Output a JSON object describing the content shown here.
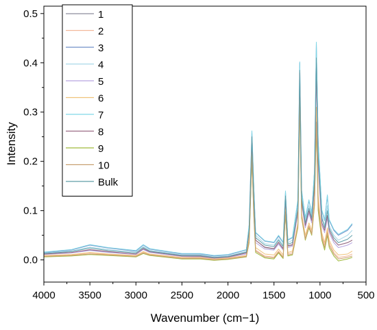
{
  "chart_data": {
    "type": "line",
    "title": "",
    "xlabel": "Wavenumber (cm−1)",
    "ylabel": "Intensity",
    "xlim": [
      4000,
      500
    ],
    "ylim": [
      -0.045,
      0.515
    ],
    "x_reversed": true,
    "x_ticks": [
      4000,
      3500,
      3000,
      2500,
      2000,
      1500,
      1000,
      500
    ],
    "y_ticks": [
      0.0,
      0.1,
      0.2,
      0.3,
      0.4,
      0.5
    ],
    "x_tick_labels": [
      "4000",
      "3500",
      "3000",
      "2500",
      "2000",
      "1500",
      "1000",
      "500"
    ],
    "y_tick_labels": [
      "0.0",
      "0.1",
      "0.2",
      "0.3",
      "0.4",
      "0.5"
    ],
    "legend_position": "top-left",
    "grid": false,
    "series": [
      {
        "name": "1",
        "color": "#8c8c9c",
        "x": [
          4000,
          3700,
          3500,
          3300,
          3000,
          2920,
          2850,
          2500,
          2300,
          2150,
          2000,
          1800,
          1770,
          1740,
          1720,
          1700,
          1600,
          1500,
          1450,
          1400,
          1375,
          1350,
          1300,
          1240,
          1220,
          1200,
          1160,
          1120,
          1090,
          1060,
          1040,
          1020,
          980,
          950,
          920,
          900,
          850,
          800,
          700,
          650
        ],
        "y": [
          0.012,
          0.015,
          0.02,
          0.016,
          0.012,
          0.022,
          0.016,
          0.008,
          0.007,
          0.004,
          0.006,
          0.014,
          0.06,
          0.245,
          0.13,
          0.04,
          0.025,
          0.022,
          0.035,
          0.022,
          0.125,
          0.028,
          0.03,
          0.1,
          0.38,
          0.12,
          0.07,
          0.1,
          0.08,
          0.15,
          0.4,
          0.2,
          0.075,
          0.06,
          0.09,
          0.06,
          0.04,
          0.03,
          0.035,
          0.04
        ]
      },
      {
        "name": "2",
        "color": "#f2b89a",
        "x": [
          4000,
          3700,
          3500,
          3300,
          3000,
          2920,
          2850,
          2500,
          2300,
          2150,
          2000,
          1800,
          1770,
          1740,
          1720,
          1700,
          1600,
          1500,
          1450,
          1400,
          1375,
          1350,
          1300,
          1240,
          1220,
          1200,
          1160,
          1120,
          1090,
          1060,
          1040,
          1020,
          980,
          950,
          920,
          900,
          850,
          800,
          700,
          650
        ],
        "y": [
          0.008,
          0.01,
          0.014,
          0.011,
          0.008,
          0.016,
          0.011,
          0.004,
          0.004,
          0.001,
          0.003,
          0.008,
          0.04,
          0.215,
          0.1,
          0.02,
          0.008,
          0.006,
          0.018,
          0.006,
          0.1,
          0.012,
          0.015,
          0.07,
          0.33,
          0.09,
          0.045,
          0.07,
          0.055,
          0.12,
          0.3,
          0.12,
          0.05,
          0.03,
          0.06,
          0.035,
          0.015,
          0.005,
          0.008,
          0.012
        ]
      },
      {
        "name": "3",
        "color": "#6f8fc8",
        "x": [
          4000,
          3700,
          3500,
          3300,
          3000,
          2920,
          2850,
          2500,
          2300,
          2150,
          2000,
          1800,
          1770,
          1740,
          1720,
          1700,
          1600,
          1500,
          1450,
          1400,
          1375,
          1350,
          1300,
          1240,
          1220,
          1200,
          1160,
          1120,
          1090,
          1060,
          1040,
          1020,
          980,
          950,
          920,
          900,
          850,
          800,
          700,
          650
        ],
        "y": [
          0.015,
          0.02,
          0.03,
          0.024,
          0.018,
          0.03,
          0.022,
          0.012,
          0.012,
          0.008,
          0.01,
          0.02,
          0.07,
          0.26,
          0.15,
          0.055,
          0.038,
          0.035,
          0.048,
          0.035,
          0.138,
          0.04,
          0.045,
          0.12,
          0.4,
          0.14,
          0.085,
          0.12,
          0.095,
          0.18,
          0.44,
          0.24,
          0.1,
          0.08,
          0.13,
          0.08,
          0.06,
          0.05,
          0.06,
          0.072
        ]
      },
      {
        "name": "4",
        "color": "#a8d8e8",
        "x": [
          4000,
          3700,
          3500,
          3300,
          3000,
          2920,
          2850,
          2500,
          2300,
          2150,
          2000,
          1800,
          1770,
          1740,
          1720,
          1700,
          1600,
          1500,
          1450,
          1400,
          1375,
          1350,
          1300,
          1240,
          1220,
          1200,
          1160,
          1120,
          1090,
          1060,
          1040,
          1020,
          980,
          950,
          920,
          900,
          850,
          800,
          700,
          650
        ],
        "y": [
          0.014,
          0.018,
          0.026,
          0.021,
          0.016,
          0.027,
          0.02,
          0.01,
          0.01,
          0.006,
          0.008,
          0.017,
          0.065,
          0.25,
          0.14,
          0.05,
          0.033,
          0.03,
          0.043,
          0.03,
          0.13,
          0.035,
          0.04,
          0.11,
          0.39,
          0.13,
          0.08,
          0.11,
          0.09,
          0.17,
          0.42,
          0.22,
          0.09,
          0.07,
          0.11,
          0.07,
          0.05,
          0.04,
          0.05,
          0.06
        ]
      },
      {
        "name": "5",
        "color": "#b6a3e0",
        "x": [
          4000,
          3700,
          3500,
          3300,
          3000,
          2920,
          2850,
          2500,
          2300,
          2150,
          2000,
          1800,
          1770,
          1740,
          1720,
          1700,
          1600,
          1500,
          1450,
          1400,
          1375,
          1350,
          1300,
          1240,
          1220,
          1200,
          1160,
          1120,
          1090,
          1060,
          1040,
          1020,
          980,
          950,
          920,
          900,
          850,
          800,
          700,
          650
        ],
        "y": [
          0.011,
          0.014,
          0.019,
          0.015,
          0.011,
          0.021,
          0.015,
          0.007,
          0.006,
          0.003,
          0.005,
          0.012,
          0.055,
          0.24,
          0.125,
          0.035,
          0.022,
          0.02,
          0.032,
          0.02,
          0.12,
          0.025,
          0.028,
          0.095,
          0.37,
          0.115,
          0.065,
          0.095,
          0.075,
          0.145,
          0.38,
          0.19,
          0.07,
          0.055,
          0.085,
          0.055,
          0.035,
          0.025,
          0.03,
          0.035
        ]
      },
      {
        "name": "6",
        "color": "#f0c27a",
        "x": [
          4000,
          3700,
          3500,
          3300,
          3000,
          2920,
          2850,
          2500,
          2300,
          2150,
          2000,
          1800,
          1770,
          1740,
          1720,
          1700,
          1600,
          1500,
          1450,
          1400,
          1375,
          1350,
          1300,
          1240,
          1220,
          1200,
          1160,
          1120,
          1090,
          1060,
          1040,
          1020,
          980,
          950,
          920,
          900,
          850,
          800,
          700,
          650
        ],
        "y": [
          0.009,
          0.011,
          0.015,
          0.012,
          0.009,
          0.017,
          0.012,
          0.005,
          0.005,
          0.002,
          0.004,
          0.009,
          0.045,
          0.22,
          0.105,
          0.025,
          0.012,
          0.01,
          0.022,
          0.01,
          0.105,
          0.015,
          0.018,
          0.075,
          0.34,
          0.095,
          0.05,
          0.075,
          0.06,
          0.125,
          0.31,
          0.13,
          0.055,
          0.035,
          0.065,
          0.04,
          0.02,
          0.01,
          0.012,
          0.018
        ]
      },
      {
        "name": "7",
        "color": "#7fd6e6",
        "x": [
          4000,
          3700,
          3500,
          3300,
          3000,
          2920,
          2850,
          2500,
          2300,
          2150,
          2000,
          1800,
          1770,
          1740,
          1720,
          1700,
          1600,
          1500,
          1450,
          1400,
          1375,
          1350,
          1300,
          1240,
          1220,
          1200,
          1160,
          1120,
          1090,
          1060,
          1040,
          1020,
          980,
          950,
          920,
          900,
          850,
          800,
          700,
          650
        ],
        "y": [
          0.016,
          0.021,
          0.031,
          0.025,
          0.019,
          0.031,
          0.023,
          0.013,
          0.013,
          0.009,
          0.011,
          0.021,
          0.072,
          0.262,
          0.152,
          0.056,
          0.039,
          0.036,
          0.05,
          0.036,
          0.14,
          0.041,
          0.046,
          0.122,
          0.402,
          0.142,
          0.086,
          0.122,
          0.096,
          0.182,
          0.442,
          0.242,
          0.102,
          0.082,
          0.132,
          0.082,
          0.062,
          0.052,
          0.062,
          0.074
        ]
      },
      {
        "name": "8",
        "color": "#9b6b84",
        "x": [
          4000,
          3700,
          3500,
          3300,
          3000,
          2920,
          2850,
          2500,
          2300,
          2150,
          2000,
          1800,
          1770,
          1740,
          1720,
          1700,
          1600,
          1500,
          1450,
          1400,
          1375,
          1350,
          1300,
          1240,
          1220,
          1200,
          1160,
          1120,
          1090,
          1060,
          1040,
          1020,
          980,
          950,
          920,
          900,
          850,
          800,
          700,
          650
        ],
        "y": [
          0.012,
          0.015,
          0.021,
          0.017,
          0.012,
          0.023,
          0.017,
          0.008,
          0.008,
          0.004,
          0.006,
          0.014,
          0.06,
          0.245,
          0.13,
          0.04,
          0.026,
          0.023,
          0.036,
          0.023,
          0.126,
          0.029,
          0.031,
          0.1,
          0.38,
          0.12,
          0.07,
          0.1,
          0.08,
          0.15,
          0.39,
          0.2,
          0.075,
          0.06,
          0.09,
          0.06,
          0.04,
          0.03,
          0.035,
          0.04
        ]
      },
      {
        "name": "9",
        "color": "#9fb93a",
        "x": [
          4000,
          3700,
          3500,
          3300,
          3000,
          2920,
          2850,
          2500,
          2300,
          2150,
          2000,
          1800,
          1770,
          1740,
          1720,
          1700,
          1600,
          1500,
          1450,
          1400,
          1375,
          1350,
          1300,
          1240,
          1220,
          1200,
          1160,
          1120,
          1090,
          1060,
          1040,
          1020,
          980,
          950,
          920,
          900,
          850,
          800,
          700,
          650
        ],
        "y": [
          0.006,
          0.008,
          0.011,
          0.009,
          0.006,
          0.013,
          0.009,
          0.002,
          0.002,
          -0.001,
          0.001,
          0.006,
          0.035,
          0.205,
          0.09,
          0.015,
          0.004,
          0.002,
          0.014,
          0.003,
          0.095,
          0.008,
          0.01,
          0.065,
          0.32,
          0.085,
          0.04,
          0.065,
          0.05,
          0.11,
          0.27,
          0.1,
          0.04,
          0.02,
          0.05,
          0.025,
          0.008,
          -0.002,
          0.002,
          0.005
        ]
      },
      {
        "name": "10",
        "color": "#c8a070",
        "x": [
          4000,
          3700,
          3500,
          3300,
          3000,
          2920,
          2850,
          2500,
          2300,
          2150,
          2000,
          1800,
          1770,
          1740,
          1720,
          1700,
          1600,
          1500,
          1450,
          1400,
          1375,
          1350,
          1300,
          1240,
          1220,
          1200,
          1160,
          1120,
          1090,
          1060,
          1040,
          1020,
          980,
          950,
          920,
          900,
          850,
          800,
          700,
          650
        ],
        "y": [
          0.007,
          0.009,
          0.012,
          0.01,
          0.007,
          0.014,
          0.01,
          0.003,
          0.003,
          0.0,
          0.002,
          0.007,
          0.038,
          0.21,
          0.095,
          0.018,
          0.006,
          0.004,
          0.016,
          0.005,
          0.098,
          0.01,
          0.012,
          0.068,
          0.325,
          0.088,
          0.042,
          0.068,
          0.052,
          0.115,
          0.28,
          0.11,
          0.045,
          0.025,
          0.055,
          0.03,
          0.012,
          0.002,
          0.005,
          0.008
        ]
      },
      {
        "name": "Bulk",
        "color": "#5f9ea8",
        "x": [
          4000,
          3700,
          3500,
          3300,
          3000,
          2920,
          2850,
          2500,
          2300,
          2150,
          2000,
          1800,
          1770,
          1740,
          1720,
          1700,
          1600,
          1500,
          1450,
          1400,
          1375,
          1350,
          1300,
          1240,
          1220,
          1200,
          1160,
          1120,
          1090,
          1060,
          1040,
          1020,
          980,
          950,
          920,
          900,
          850,
          800,
          700,
          650
        ],
        "y": [
          0.013,
          0.017,
          0.024,
          0.019,
          0.014,
          0.025,
          0.018,
          0.009,
          0.009,
          0.005,
          0.007,
          0.016,
          0.062,
          0.25,
          0.135,
          0.045,
          0.03,
          0.027,
          0.04,
          0.027,
          0.13,
          0.032,
          0.035,
          0.105,
          0.385,
          0.125,
          0.075,
          0.105,
          0.085,
          0.16,
          0.41,
          0.21,
          0.085,
          0.065,
          0.1,
          0.065,
          0.045,
          0.035,
          0.042,
          0.05
        ]
      }
    ]
  }
}
